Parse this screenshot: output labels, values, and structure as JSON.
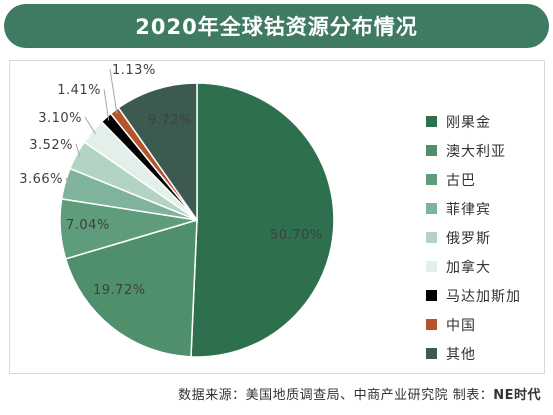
{
  "chart_data": {
    "type": "pie",
    "title": "2020年全球钴资源分布情况",
    "slices": [
      {
        "label": "刚果金",
        "value": 50.7,
        "display": "50.70%",
        "color": "#2e6f4e"
      },
      {
        "label": "澳大利亚",
        "value": 19.72,
        "display": "19.72%",
        "color": "#4f8f6c"
      },
      {
        "label": "古巴",
        "value": 7.04,
        "display": "7.04%",
        "color": "#5e9c7c"
      },
      {
        "label": "菲律宾",
        "value": 3.66,
        "display": "3.66%",
        "color": "#7fb39b"
      },
      {
        "label": "俄罗斯",
        "value": 3.52,
        "display": "3.52%",
        "color": "#b3d4c5"
      },
      {
        "label": "加拿大",
        "value": 3.1,
        "display": "3.10%",
        "color": "#e3efe9"
      },
      {
        "label": "马达加斯加",
        "value": 1.41,
        "display": "1.41%",
        "color": "#000000"
      },
      {
        "label": "中国",
        "value": 1.13,
        "display": "1.13%",
        "color": "#b5532b"
      },
      {
        "label": "其他",
        "value": 9.72,
        "display": "9.72%",
        "color": "#3d5a50"
      }
    ],
    "legend_position": "right"
  },
  "footer": {
    "source_prefix": "数据来源：美国地质调查局、中商产业研究院   制表：",
    "source_brand": "NE时代"
  }
}
